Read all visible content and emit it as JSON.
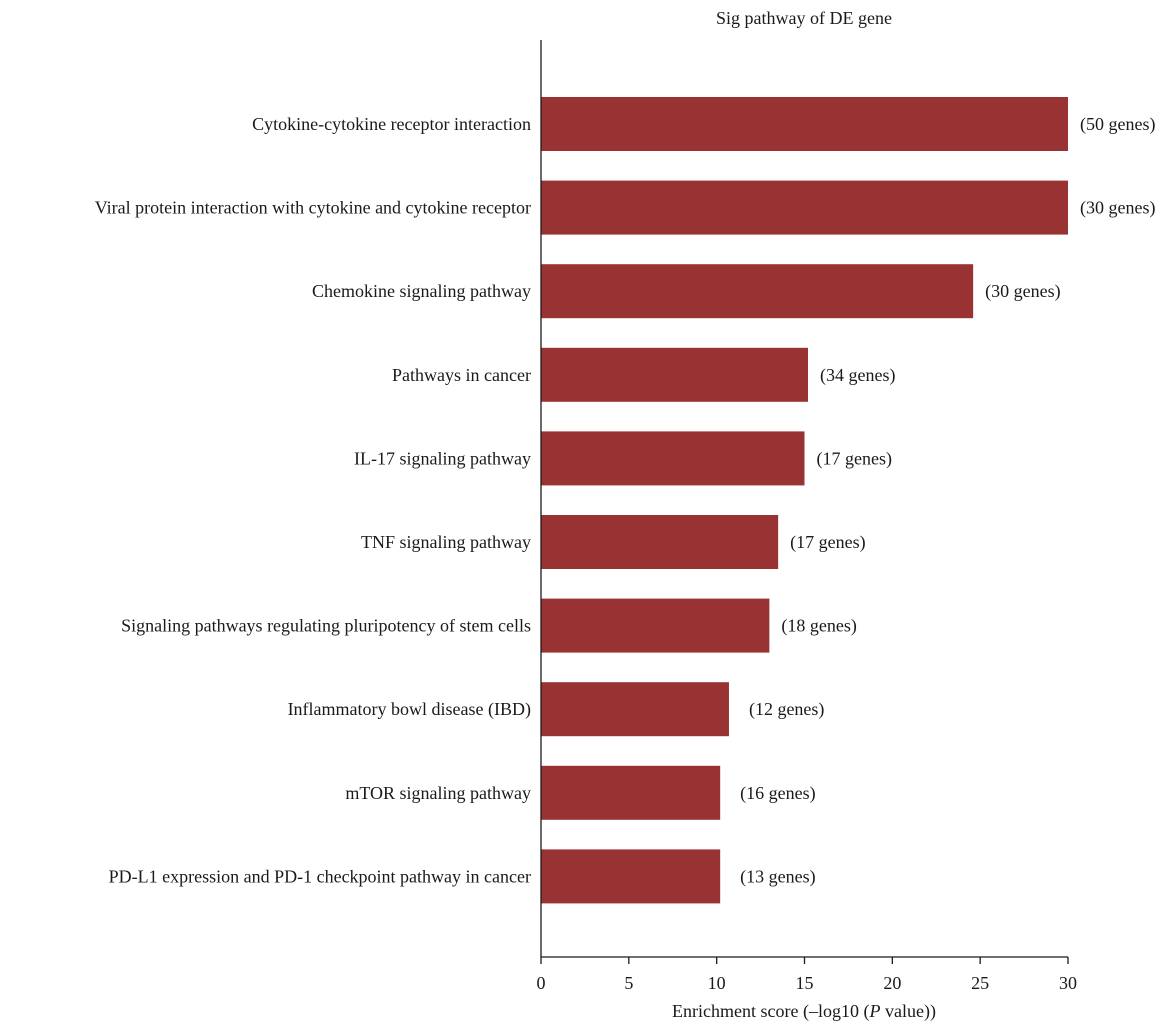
{
  "chart_data": {
    "type": "bar",
    "orientation": "horizontal",
    "title": "Sig pathway of DE gene",
    "xlabel_prefix": "Enrichment score (–log10 (",
    "xlabel_italic": "P",
    "xlabel_suffix": " value))",
    "ylabel": "",
    "xlim": [
      0,
      30
    ],
    "xticks": [
      0,
      5,
      10,
      15,
      20,
      25,
      30
    ],
    "bar_color": "#993333",
    "categories": [
      "Cytokine-cytokine receptor interaction",
      "Viral protein interaction with cytokine and cytokine receptor",
      "Chemokine signaling pathway",
      "Pathways in cancer",
      "IL-17 signaling pathway",
      "TNF signaling pathway",
      "Signaling pathways regulating pluripotency of stem cells",
      "Inflammatory bowl disease (IBD)",
      "mTOR signaling pathway",
      "PD-L1 expression and PD-1 checkpoint pathway in cancer"
    ],
    "values": [
      30,
      30,
      24.6,
      15.2,
      15.0,
      13.5,
      13.0,
      10.7,
      10.2,
      10.2
    ],
    "gene_counts": [
      "(50 genes)",
      "(30 genes)",
      "(30 genes)",
      "(34 genes)",
      "(17 genes)",
      "(17 genes)",
      "(18 genes)",
      "(12 genes)",
      "(16 genes)",
      "(13 genes)"
    ]
  }
}
